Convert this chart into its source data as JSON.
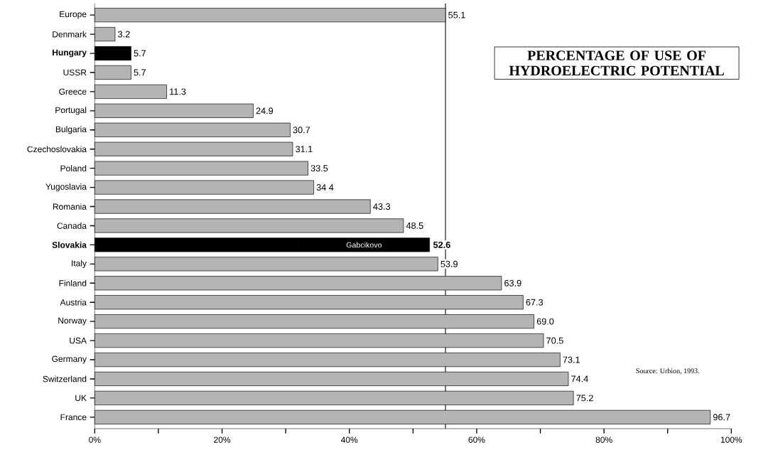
{
  "chart_data": {
    "type": "bar",
    "orientation": "horizontal",
    "stacked": true,
    "title": "PERCENTAGE OF USE OF HYDROELECTRIC POTENTIAL",
    "categories": [
      "Europe",
      "Denmark",
      "**Hungary**",
      "USSR",
      "Greece",
      "Portugal",
      "Bulgaria",
      "Czechoslovakia",
      "Poland",
      "Yugoslavia",
      "Romania",
      "Canada",
      "**Slovakia**",
      "Italy",
      "Finland",
      "Austria",
      "Norway",
      "USA",
      "Germany",
      "Switzerland",
      "UK",
      "France"
    ],
    "series": [
      {
        "colors": [
          "#b4b4b4",
          "#b4b4b4",
          "#000000",
          "#b4b4b4",
          "#b4b4b4",
          "#b4b4b4",
          "#b4b4b4",
          "#b4b4b4",
          "#b4b4b4",
          "#b4b4b4",
          "#b4b4b4",
          "#b4b4b4",
          "#000000",
          "#b4b4b4",
          "#b4b4b4",
          "#b4b4b4",
          "#b4b4b4",
          "#b4b4b4",
          "#b4b4b4",
          "#b4b4b4",
          "#b4b4b4",
          "#b4b4b4"
        ],
        "values": [
          55.1,
          3.2,
          5.7,
          5.7,
          11.3,
          24.9,
          30.7,
          31.1,
          33.5,
          34.4,
          43.3,
          48.5,
          32.0,
          53.9,
          63.9,
          67.3,
          69.0,
          70.5,
          73.1,
          74.4,
          75.2,
          96.7
        ],
        "value_labels": [
          "55.1",
          "3.2",
          "5.7",
          "5.7",
          "11.3",
          "24.9",
          "30.7",
          "31.1",
          "33.5",
          "34 4",
          "43.3",
          "48.5",
          null,
          "53.9",
          "63.9",
          "67.3",
          "69.0",
          "70.5",
          "73.1",
          "74.4",
          "75.2",
          "96.7"
        ]
      },
      {
        "name": "Gabcikovo",
        "color": "#000000",
        "values": [
          null,
          null,
          null,
          null,
          null,
          null,
          null,
          null,
          null,
          null,
          null,
          null,
          20.6,
          null,
          null,
          null,
          null,
          null,
          null,
          null,
          null,
          null
        ]
      }
    ],
    "totals": [
      null,
      null,
      null,
      null,
      null,
      null,
      null,
      null,
      null,
      null,
      null,
      null,
      "**52.6**",
      null,
      null,
      null,
      null,
      null,
      null,
      null,
      null,
      null
    ],
    "xlim": [
      0,
      100
    ],
    "xticks": [
      {
        "value": 0,
        "label": "0%"
      },
      {
        "value": 10,
        "label": null
      },
      {
        "value": 20,
        "label": "20%"
      },
      {
        "value": 30,
        "label": null
      },
      {
        "value": 40,
        "label": "40%"
      },
      {
        "value": 50,
        "label": null
      },
      {
        "value": 60,
        "label": "60%"
      },
      {
        "value": 70,
        "label": null
      },
      {
        "value": 80,
        "label": "80%"
      },
      {
        "value": 90,
        "label": null
      },
      {
        "value": 100,
        "label": "100%"
      }
    ],
    "ref_lines": [
      {
        "axis": "x",
        "value": 55.1,
        "color": "#000000"
      }
    ],
    "annotations": [
      "Source: Urbion, 1993."
    ],
    "grid": false
  }
}
